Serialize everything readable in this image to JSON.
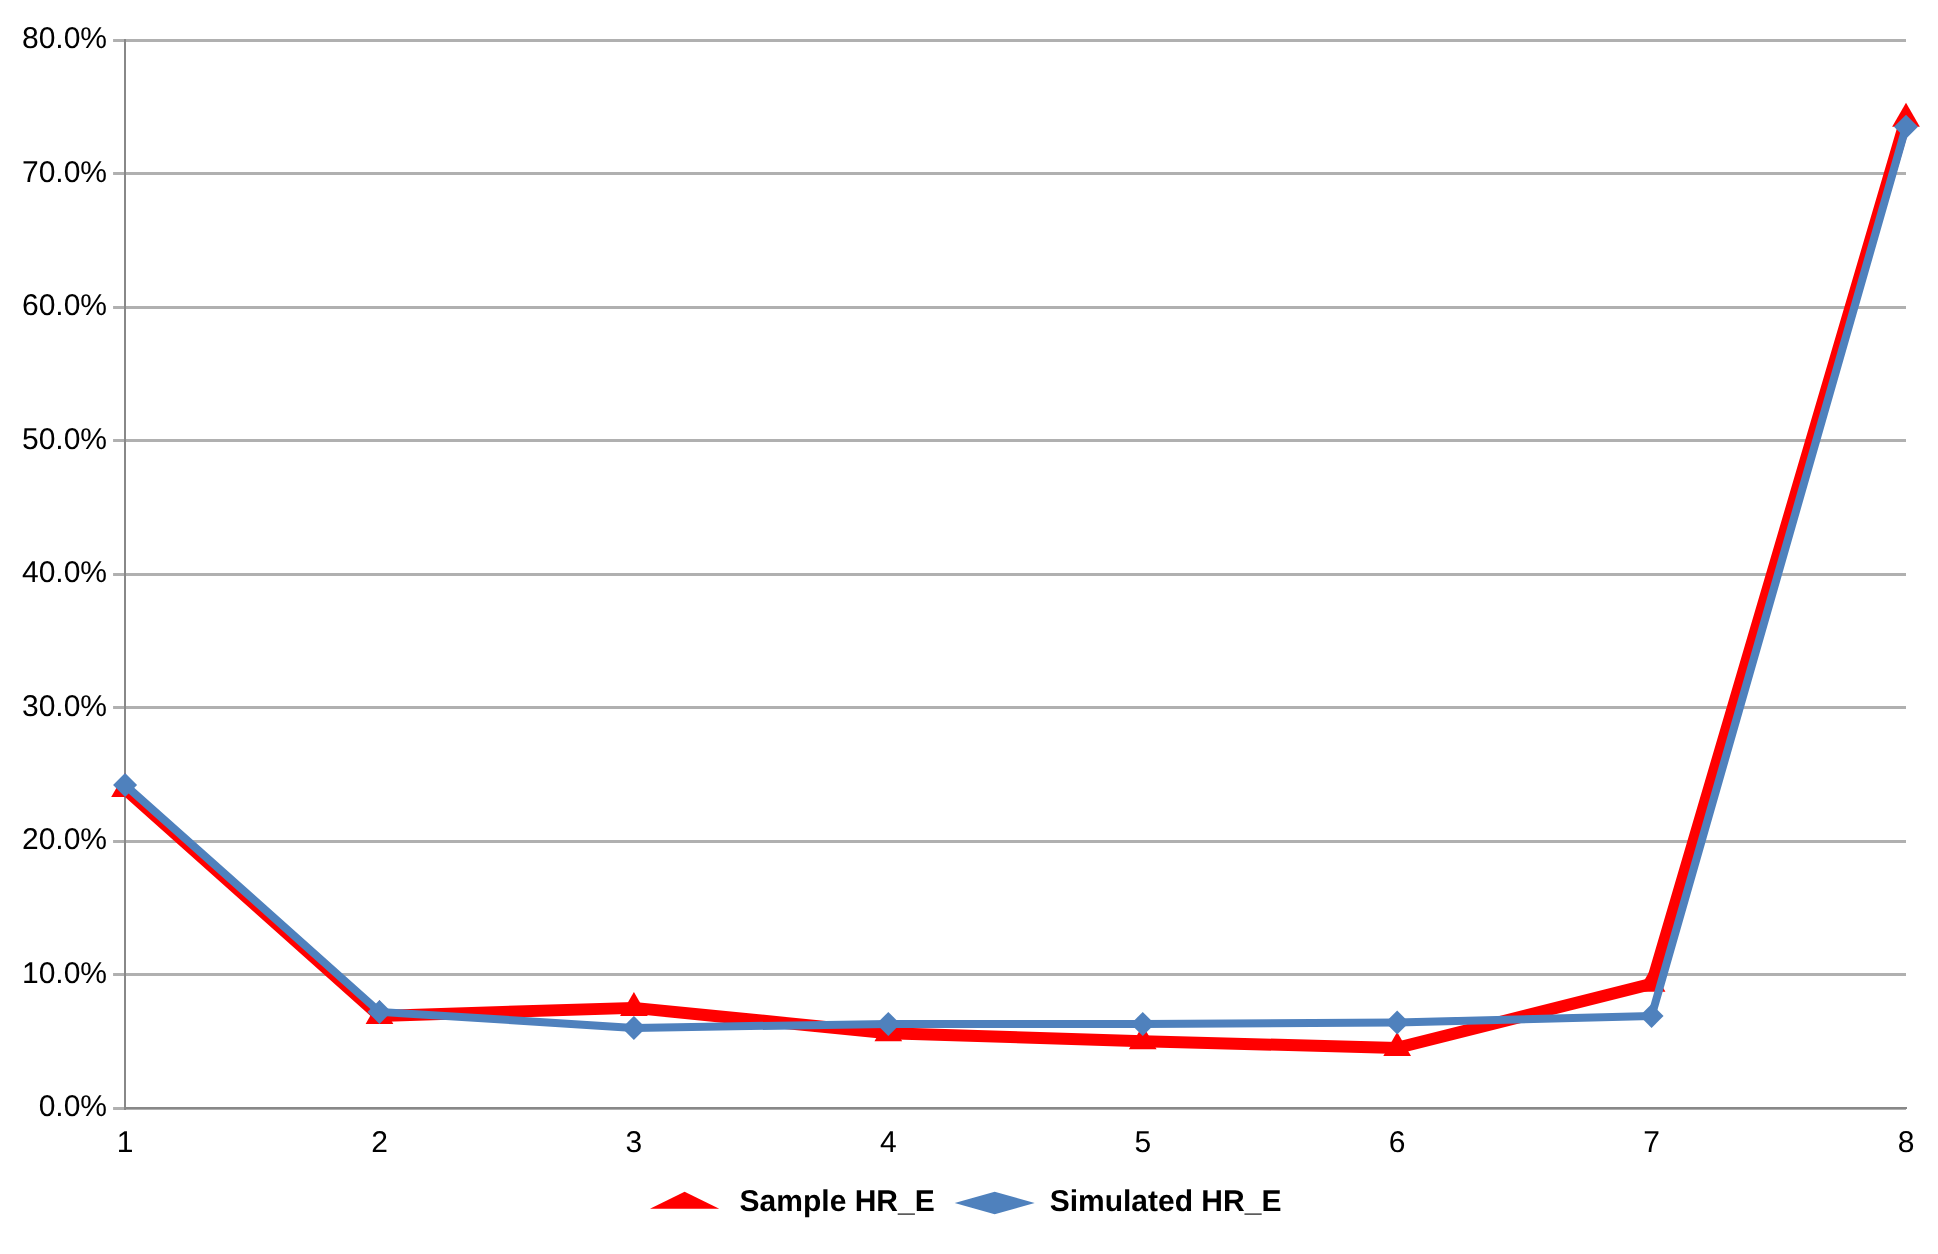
{
  "chart_data": {
    "type": "line",
    "categories": [
      "1",
      "2",
      "3",
      "4",
      "5",
      "6",
      "7",
      "8"
    ],
    "series": [
      {
        "name": "Sample HR_E",
        "color": "#ff0000",
        "marker": "triangle",
        "values": [
          23.9,
          6.9,
          7.5,
          5.6,
          5.0,
          4.5,
          9.3,
          74.1
        ]
      },
      {
        "name": "Simulated HR_E",
        "color": "#4f81bd",
        "marker": "diamond",
        "values": [
          24.2,
          7.2,
          6.0,
          6.3,
          6.3,
          6.4,
          6.9,
          73.5
        ]
      }
    ],
    "ylim": [
      0,
      80
    ],
    "yticks": [
      {
        "value": 0,
        "label": "0.0%"
      },
      {
        "value": 10,
        "label": "10.0%"
      },
      {
        "value": 20,
        "label": "20.0%"
      },
      {
        "value": 30,
        "label": "30.0%"
      },
      {
        "value": 40,
        "label": "40.0%"
      },
      {
        "value": 50,
        "label": "50.0%"
      },
      {
        "value": 60,
        "label": "60.0%"
      },
      {
        "value": 70,
        "label": "70.0%"
      },
      {
        "value": 80,
        "label": "80.0%"
      }
    ],
    "grid": "y",
    "legend": "bottom",
    "line_style": "solid"
  }
}
